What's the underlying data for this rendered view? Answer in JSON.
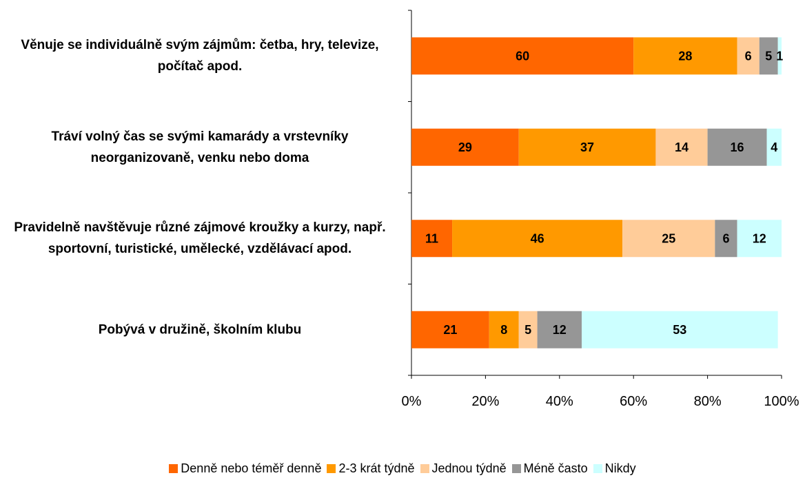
{
  "chart_data": {
    "type": "bar",
    "orientation": "horizontal",
    "stacked": true,
    "categories": [
      "Věnuje se individuálně svým zájmům: četba, hry, televize, počítač apod.",
      "Tráví volný čas se svými kamarády a vrstevníky neorganizovaně, venku nebo doma",
      "Pravidelně navštěvuje různé zájmové kroužky a kurzy, např. sportovní, turistické, umělecké, vzdělávací apod.",
      "Pobývá v družině, školním klubu"
    ],
    "series": [
      {
        "name": "Denně nebo téměř denně",
        "color": "#ff6600",
        "values": [
          60,
          29,
          11,
          21
        ]
      },
      {
        "name": "2-3 krát týdně",
        "color": "#ff9900",
        "values": [
          28,
          37,
          46,
          8
        ]
      },
      {
        "name": "Jednou týdně",
        "color": "#ffcc99",
        "values": [
          6,
          14,
          25,
          5
        ]
      },
      {
        "name": "Méně často",
        "color": "#969696",
        "values": [
          5,
          16,
          6,
          12
        ]
      },
      {
        "name": "Nikdy",
        "color": "#ccffff",
        "values": [
          1,
          4,
          12,
          53
        ]
      }
    ],
    "xlim": [
      0,
      100
    ],
    "xticks": [
      {
        "value": 0,
        "label": "0%"
      },
      {
        "value": 20,
        "label": "20%"
      },
      {
        "value": 40,
        "label": "40%"
      },
      {
        "value": 60,
        "label": "60%"
      },
      {
        "value": 80,
        "label": "80%"
      },
      {
        "value": 100,
        "label": "100%"
      }
    ],
    "grid": false,
    "legend": "bottom"
  }
}
